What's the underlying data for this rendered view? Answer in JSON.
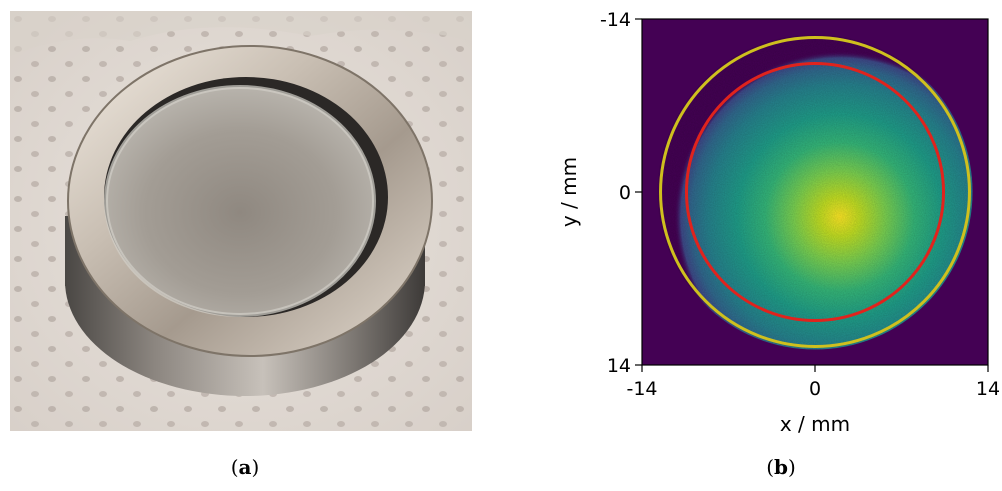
{
  "figure": {
    "panel_a": {
      "caption_open": "(",
      "caption_letter": "a",
      "caption_close": ")"
    },
    "panel_b": {
      "caption_open": "(",
      "caption_letter": "b",
      "caption_close": ")"
    }
  },
  "chart_data": {
    "type": "heatmap",
    "title": "",
    "xlabel": "x / mm",
    "ylabel": "y / mm",
    "xlim": [
      -14,
      14
    ],
    "ylim": [
      -14,
      14
    ],
    "y_inverted": true,
    "x_ticks": [
      "-14",
      "0",
      "14"
    ],
    "y_ticks": [
      "-14",
      "0",
      "14"
    ],
    "colormap": "viridis",
    "background_color": "#440154",
    "intensity_peak": {
      "x": 2,
      "y": 2
    },
    "circles": [
      {
        "color": "#cfc01e",
        "center_x": 0,
        "center_y": 0,
        "radius": 12.5
      },
      {
        "color": "#e0231d",
        "center_x": 0,
        "center_y": 0,
        "radius": 10.4
      }
    ]
  }
}
